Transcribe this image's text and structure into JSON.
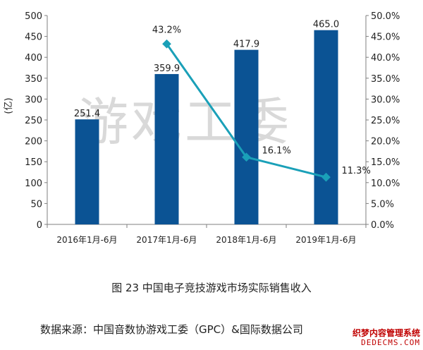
{
  "chart_data": {
    "type": "bar",
    "categories": [
      "2016年1月-6月",
      "2017年1月-6月",
      "2018年1月-6月",
      "2019年1月-6月"
    ],
    "series": [
      {
        "name": "",
        "type": "bar",
        "axis": "left",
        "values": [
          251.4,
          359.9,
          417.9,
          465.0
        ],
        "labels": [
          "251.4",
          "359.9",
          "417.9",
          "465.0"
        ]
      },
      {
        "name": "",
        "type": "line",
        "axis": "right",
        "values": [
          null,
          43.2,
          16.1,
          11.3
        ],
        "labels": [
          "",
          "43.2%",
          "16.1%",
          "11.3%"
        ]
      }
    ],
    "ylabel": "(亿)",
    "ylim": [
      0,
      500
    ],
    "yticks": [
      "0",
      "50",
      "100",
      "150",
      "200",
      "250",
      "300",
      "350",
      "400",
      "450",
      "500"
    ],
    "y2lim": [
      0,
      50
    ],
    "y2ticks": [
      "0.0%",
      "5.0%",
      "10.0%",
      "15.0%",
      "20.0%",
      "25.0%",
      "30.0%",
      "35.0%",
      "40.0%",
      "45.0%",
      "50.0%"
    ],
    "grid": false,
    "colors": {
      "bar": "#0b5394",
      "line": "#1aa0b8",
      "axis": "#7f7f7f"
    },
    "watermark": "游戏工委"
  },
  "caption": "图 23  中国电子竞技游戏市场实际销售收入",
  "source": "数据来源：中国音数协游戏工委（GPC）&国际数据公司",
  "logo": {
    "line1": "织梦内容管理系统",
    "line2": "DEDECMS.COM"
  }
}
